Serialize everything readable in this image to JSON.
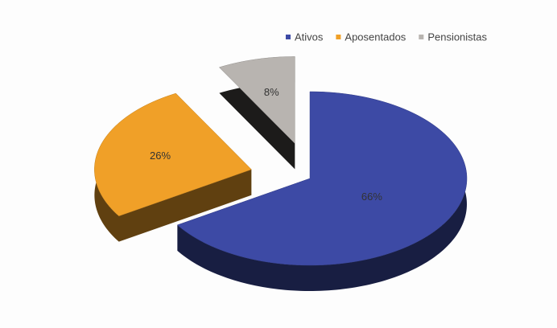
{
  "chart_data": {
    "type": "pie",
    "categories": [
      "Ativos",
      "Aposentados",
      "Pensionistas"
    ],
    "values": [
      66,
      26,
      8
    ],
    "value_labels": [
      "66%",
      "26%",
      "8%"
    ],
    "colors": [
      "#3d4aa5",
      "#f0a028",
      "#b8b4b0"
    ],
    "legend": "top-right"
  }
}
